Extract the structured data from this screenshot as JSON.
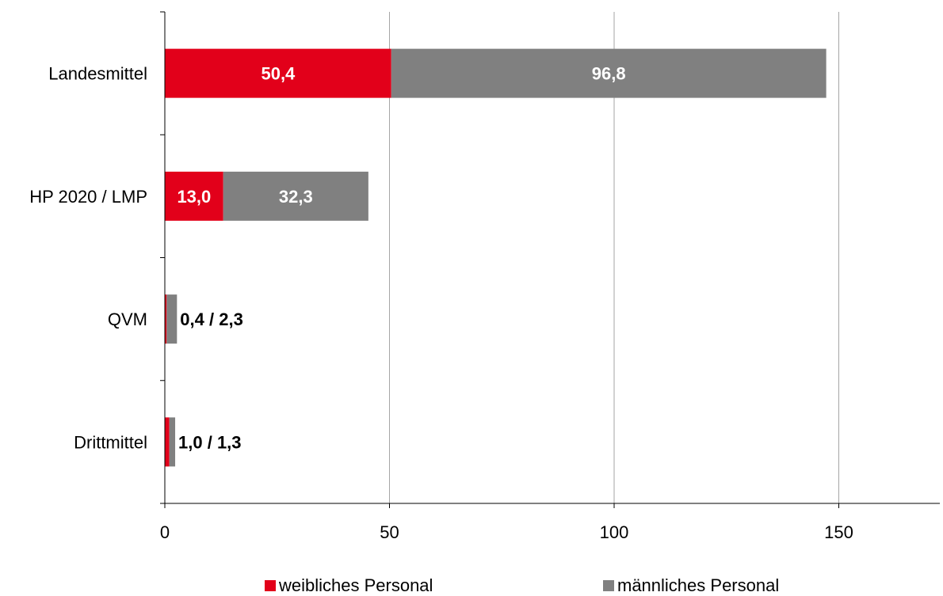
{
  "chart_data": {
    "type": "bar",
    "orientation": "horizontal",
    "stacked": true,
    "categories": [
      "Landesmittel",
      "HP 2020 / LMP",
      "QVM",
      "Drittmittel"
    ],
    "series": [
      {
        "name": "weibliches Personal",
        "values": [
          50.4,
          13.0,
          0.4,
          1.0
        ],
        "color": "#E2001A"
      },
      {
        "name": "männliches Personal",
        "values": [
          96.8,
          32.3,
          2.3,
          1.3
        ],
        "color": "#808080"
      }
    ],
    "data_labels": [
      {
        "category": "Landesmittel",
        "inside": [
          "50,4",
          "96,8"
        ]
      },
      {
        "category": "HP 2020 / LMP",
        "inside": [
          "13,0",
          "32,3"
        ]
      },
      {
        "category": "QVM",
        "outside": "0,4 / 2,3"
      },
      {
        "category": "Drittmittel",
        "outside": "1,0 / 1,3"
      }
    ],
    "xlim": [
      0,
      170
    ],
    "xticks": [
      0,
      50,
      100,
      150
    ],
    "xtick_labels": [
      "0",
      "50",
      "100",
      "150"
    ],
    "grid": "vertical",
    "legend_position": "bottom"
  }
}
